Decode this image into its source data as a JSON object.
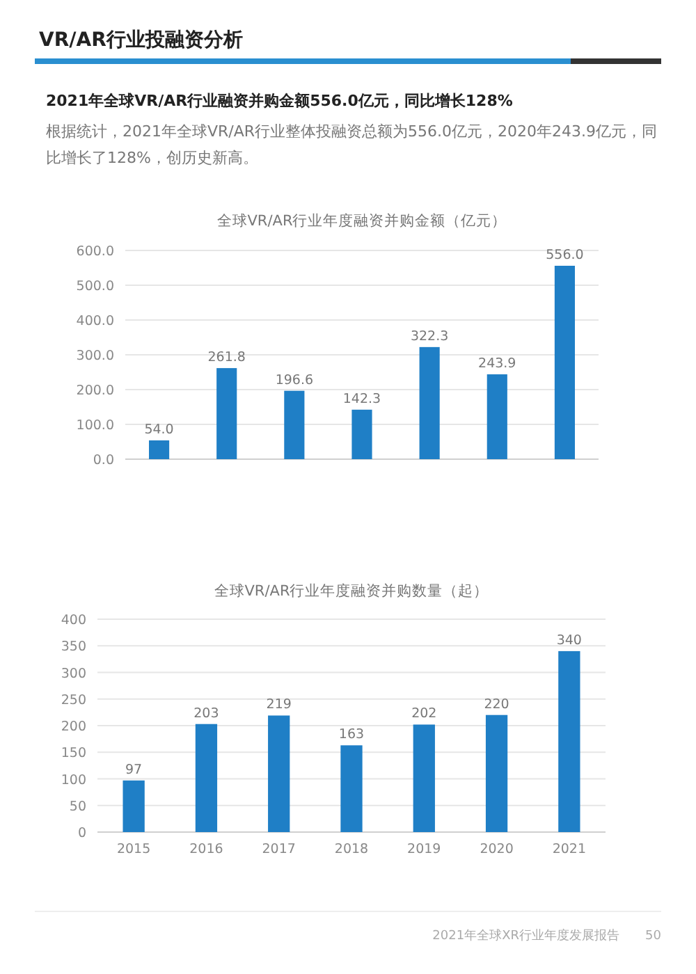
{
  "chart_data": [
    {
      "type": "bar",
      "title": "全球VR/AR行业年度融资并购金额（亿元）",
      "annotations": [
        "VR/AR行业投融资分析",
        "2021年全球VR/AR行业融资并购金额556.0亿元，同比增长128%",
        "根据统计，2021年全球VR/AR行业整体投融资总额为556.0亿元，2020年243.9亿元，同比增长了128%，创历史新高。"
      ],
      "categories": [
        null,
        null,
        null,
        null,
        null,
        null,
        null
      ],
      "values": [
        54.0,
        261.8,
        196.6,
        142.3,
        322.3,
        243.9,
        556.0
      ],
      "value_labels": [
        "54.0",
        "261.8",
        "196.6",
        "142.3",
        "322.3",
        "243.9",
        "556.0"
      ],
      "color": "#1f7fc6",
      "ylim": [
        0,
        600
      ],
      "yticks": [
        {
          "value": 0,
          "label": "0.0"
        },
        {
          "value": 100,
          "label": "100.0"
        },
        {
          "value": 200,
          "label": "200.0"
        },
        {
          "value": 300,
          "label": "300.0"
        },
        {
          "value": 400,
          "label": "400.0"
        },
        {
          "value": 500,
          "label": "500.0"
        },
        {
          "value": 600,
          "label": "600.0"
        }
      ],
      "grid": "y"
    },
    {
      "type": "bar",
      "title": "全球VR/AR行业年度融资并购数量（起）",
      "annotations": [
        "2021年全球XR行业年度发展报告",
        "50"
      ],
      "categories": [
        "2015",
        "2016",
        "2017",
        "2018",
        "2019",
        "2020",
        "2021"
      ],
      "values": [
        97,
        203,
        219,
        163,
        202,
        220,
        340
      ],
      "color": "#1f7fc6",
      "ylim": [
        0,
        400
      ],
      "yticks": [
        0,
        50,
        100,
        150,
        200,
        250,
        300,
        350,
        400
      ],
      "data_labels": true,
      "grid": "y"
    }
  ]
}
